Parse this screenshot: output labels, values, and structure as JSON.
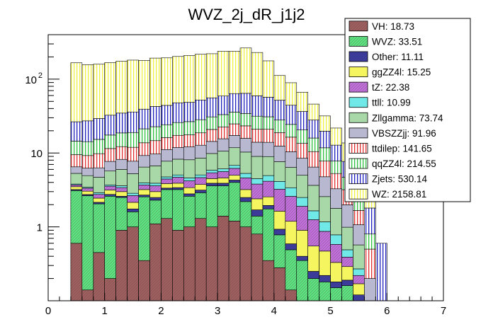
{
  "chart_data": {
    "type": "bar",
    "stacked": true,
    "title": "WVZ_2j_dR_j1j2",
    "xlabel": "",
    "ylabel": "",
    "xlim": [
      0,
      7
    ],
    "ylim": [
      0.1,
      400
    ],
    "yscale": "log",
    "x_ticks": [
      "0",
      "1",
      "2",
      "3",
      "4",
      "5",
      "6",
      "7"
    ],
    "y_ticks": [
      {
        "value": 1,
        "label": "1"
      },
      {
        "value": 10,
        "label": "10"
      },
      {
        "value": 100,
        "label": "10^2"
      }
    ],
    "bin_edges": [
      0.4,
      0.6,
      0.8,
      1.0,
      1.2,
      1.4,
      1.6,
      1.8,
      2.0,
      2.2,
      2.4,
      2.6,
      2.8,
      3.0,
      3.2,
      3.4,
      3.6,
      3.8,
      4.0,
      4.2,
      4.4,
      4.6,
      4.8,
      5.0,
      5.2,
      5.4,
      5.6,
      5.8,
      6.0
    ],
    "legend_position": "top-right",
    "series": [
      {
        "name": "VH",
        "label": "VH: 18.73",
        "color": "#a05f5f",
        "pattern": "diag",
        "values": [
          0.6,
          0.14,
          0.45,
          0.2,
          0.9,
          1.0,
          0.35,
          1.1,
          1.3,
          0.9,
          1.0,
          1.3,
          1.0,
          1.4,
          1.2,
          1.0,
          0.8,
          0.35,
          0.28,
          0.14,
          0.1,
          0.1,
          0.1,
          0.1,
          0.1,
          0.1,
          0,
          0
        ]
      },
      {
        "name": "WVZ",
        "label": "WVZ: 33.51",
        "color": "#5fe080",
        "pattern": "diag",
        "values": [
          2.5,
          2.5,
          1.6,
          2.4,
          1.6,
          0.6,
          2.2,
          1.2,
          1.9,
          2.3,
          1.6,
          1.6,
          2.6,
          2.2,
          2.8,
          1.2,
          0.6,
          1.4,
          0.5,
          0.35,
          0.25,
          0.1,
          0.08,
          0.05,
          0.06,
          0,
          0,
          0
        ]
      },
      {
        "name": "Other",
        "label": "Other: 11.11",
        "color": "#3c3ca0",
        "pattern": "diag",
        "values": [
          0.1,
          0.1,
          0.1,
          0.15,
          0.1,
          0.15,
          0.15,
          0.2,
          0.15,
          0.2,
          0.2,
          0.25,
          0.3,
          0.3,
          0.3,
          0.3,
          0.3,
          0.2,
          0.15,
          0.1,
          0.05,
          0.05,
          0.04,
          0.03,
          0.03,
          0.02,
          0,
          0
        ]
      },
      {
        "name": "ggZZ4l",
        "label": "ggZZ4l: 15.25",
        "color": "#f5f560",
        "pattern": "solid",
        "values": [
          0.3,
          0.3,
          0.3,
          0.4,
          0.4,
          0.4,
          0.5,
          0.5,
          0.5,
          0.5,
          0.6,
          0.6,
          0.6,
          0.7,
          0.7,
          0.7,
          0.7,
          0.6,
          0.7,
          0.6,
          0.5,
          0.3,
          0.25,
          0.15,
          0.1,
          0.05,
          0,
          0
        ]
      },
      {
        "name": "tZ",
        "label": "tZ: 22.38",
        "color": "#c070d8",
        "pattern": "diag",
        "values": [
          0.2,
          0.3,
          0.3,
          0.4,
          0.4,
          0.5,
          0.5,
          0.6,
          0.6,
          0.8,
          0.8,
          0.9,
          0.9,
          1.0,
          1.2,
          1.4,
          1.4,
          1.6,
          1.6,
          1.4,
          1.0,
          0.7,
          0.4,
          0.25,
          0.1,
          0.05,
          0,
          0
        ]
      },
      {
        "name": "ttll",
        "label": "ttll: 10.99",
        "color": "#70e8e8",
        "pattern": "solid",
        "values": [
          0.1,
          0.1,
          0.15,
          0.15,
          0.2,
          0.2,
          0.25,
          0.3,
          0.3,
          0.35,
          0.4,
          0.4,
          0.45,
          0.5,
          0.6,
          0.7,
          0.7,
          0.8,
          0.9,
          0.8,
          0.6,
          0.4,
          0.3,
          0.2,
          0.1,
          0.05,
          0,
          0
        ]
      },
      {
        "name": "Zllgamma",
        "label": "Zllgamma: 73.74",
        "color": "#a8d8a8",
        "pattern": "solid",
        "values": [
          1.5,
          1.5,
          1.8,
          2.0,
          2.4,
          2.4,
          2.5,
          2.8,
          3.0,
          3.2,
          3.5,
          3.5,
          4.0,
          4.5,
          5.0,
          5.0,
          4.5,
          4.0,
          3.5,
          3.0,
          2.5,
          2.0,
          1.4,
          1.0,
          0.5,
          0.3,
          0,
          0
        ]
      },
      {
        "name": "VBSZZjj",
        "label": "VBSZZjj: 91.96",
        "color": "#b8b8d0",
        "pattern": "solid",
        "values": [
          1.2,
          1.3,
          1.6,
          2.0,
          2.2,
          2.5,
          2.8,
          3.0,
          3.4,
          3.6,
          4.0,
          4.2,
          4.5,
          5.0,
          5.5,
          5.5,
          5.0,
          5.0,
          4.8,
          4.0,
          3.5,
          2.8,
          2.2,
          1.5,
          1.0,
          0.5,
          0.2,
          0
        ]
      },
      {
        "name": "ttdilep",
        "label": "ttdilep: 141.65",
        "color": "#e03030",
        "pattern": "vert",
        "values": [
          3.0,
          3.0,
          3.5,
          3.8,
          4.0,
          4.2,
          4.5,
          5.0,
          5.0,
          5.5,
          5.5,
          6.0,
          6.5,
          7.0,
          7.5,
          7.5,
          7.0,
          7.0,
          6.5,
          6.0,
          5.0,
          4.0,
          3.0,
          2.0,
          1.2,
          0.6,
          0.3,
          0
        ]
      },
      {
        "name": "qqZZ4l",
        "label": "qqZZ4l: 214.55",
        "color": "#30c040",
        "pattern": "vert",
        "values": [
          5.0,
          5.0,
          5.5,
          6.0,
          6.5,
          7.0,
          7.5,
          8.0,
          8.0,
          8.5,
          9.0,
          9.5,
          10,
          10.5,
          11,
          11,
          10.5,
          10,
          9.0,
          8.0,
          7.0,
          5.5,
          4.0,
          2.5,
          1.5,
          0.8,
          0.3,
          0
        ]
      },
      {
        "name": "Zjets",
        "label": "Zjets: 530.14",
        "color": "#2020c0",
        "pattern": "vert",
        "values": [
          12,
          13,
          14,
          15,
          16,
          17,
          18,
          20,
          20,
          22,
          22,
          24,
          25,
          26,
          28,
          30,
          28,
          26,
          24,
          20,
          16,
          12,
          8,
          5,
          3,
          1.8,
          1.0,
          0.6
        ]
      },
      {
        "name": "WZ",
        "label": "WZ: 2158.81",
        "color": "#f0f040",
        "pattern": "vert",
        "values": [
          140,
          130,
          130,
          135,
          140,
          145,
          140,
          150,
          150,
          155,
          160,
          165,
          165,
          180,
          175,
          200,
          170,
          120,
          60,
          45,
          30,
          18,
          12,
          9,
          6,
          3,
          2,
          0
        ]
      }
    ]
  }
}
